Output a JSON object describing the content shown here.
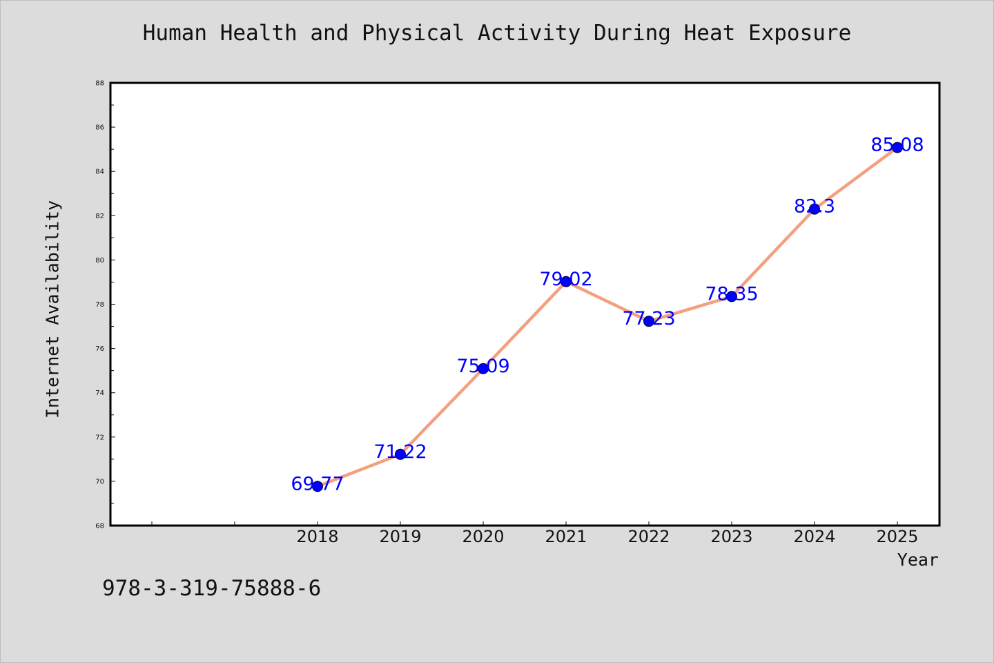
{
  "chart_data": {
    "type": "line",
    "title": "Human Health and Physical Activity During Heat Exposure",
    "xlabel": "Year",
    "ylabel": "Internet Availability",
    "categories": [
      "2018",
      "2019",
      "2020",
      "2021",
      "2022",
      "2023",
      "2024",
      "2025"
    ],
    "values": [
      69.77,
      71.22,
      75.09,
      79.02,
      77.23,
      78.35,
      82.3,
      85.08
    ],
    "data_labels": [
      "69.77",
      "71.22",
      "75.09",
      "79.02",
      "77.23",
      "78.35",
      "82.3",
      "85.08"
    ],
    "ylim": [
      68,
      88
    ],
    "yticks": [
      68,
      70,
      72,
      74,
      76,
      78,
      80,
      82,
      84,
      86,
      88
    ],
    "line_color": "#f4a080",
    "marker_color": "#0000ff",
    "label_color": "#0000ff",
    "grid": false,
    "legend": "none"
  },
  "footer_text": "978-3-319-75888-6"
}
